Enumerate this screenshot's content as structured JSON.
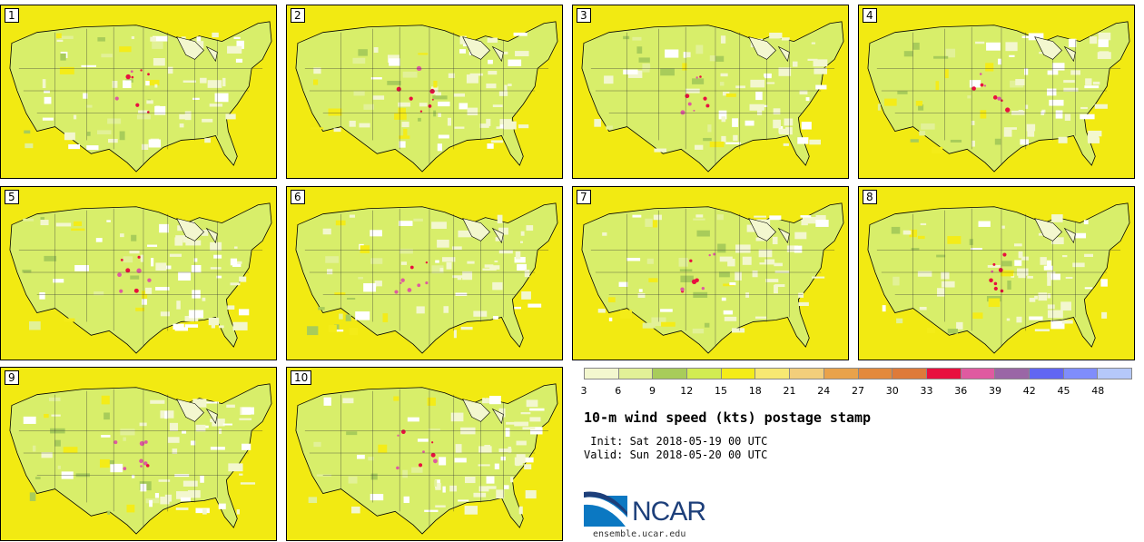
{
  "panels": [
    {
      "label": "1"
    },
    {
      "label": "2"
    },
    {
      "label": "3"
    },
    {
      "label": "4"
    },
    {
      "label": "5"
    },
    {
      "label": "6"
    },
    {
      "label": "7"
    },
    {
      "label": "8"
    },
    {
      "label": "9"
    },
    {
      "label": "10"
    }
  ],
  "legend": {
    "ticks": [
      "3",
      "6",
      "9",
      "12",
      "15",
      "18",
      "21",
      "24",
      "27",
      "30",
      "33",
      "36",
      "39",
      "42",
      "45",
      "48"
    ],
    "colors": [
      "#f3f7cf",
      "#e2f197",
      "#a8cc5a",
      "#d2ec52",
      "#f4ec18",
      "#f7e872",
      "#f2ce7b",
      "#e9a24a",
      "#e3893c",
      "#de7a3a",
      "#e8103f",
      "#df5aa0",
      "#9a66a6",
      "#6166f2",
      "#7f8dfb",
      "#b5c8fa"
    ]
  },
  "title": "10-m wind speed (kts) postage stamp",
  "init": " Init: Sat 2018-05-19 00 UTC",
  "valid": "Valid: Sun 2018-05-20 00 UTC",
  "logo": {
    "text": "NCAR",
    "site": "ensemble.ucar.edu",
    "color": "#1d3f7a",
    "accent": "#0b78c2"
  }
}
